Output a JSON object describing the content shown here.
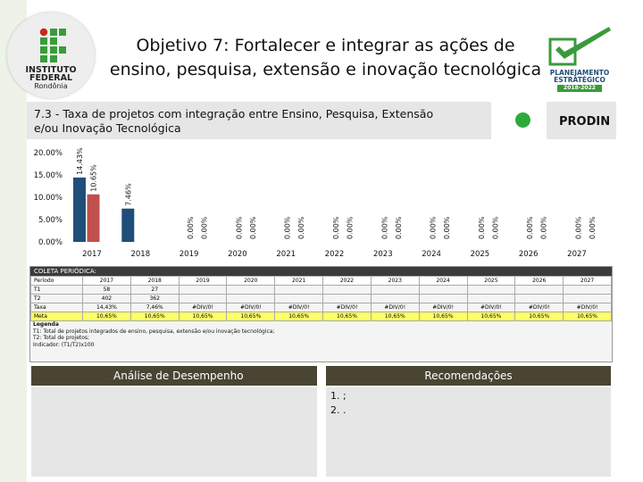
{
  "header": {
    "logo_lines": [
      "INSTITUTO",
      "FEDERAL",
      "Rondônia"
    ],
    "title_line1": "Objetivo 7: Fortalecer e integrar as ações de",
    "title_line2": "ensino, pesquisa, extensão e inovação tecnológica",
    "pe_logo_lines": [
      "PLANEJAMENTO",
      "ESTRATÉGICO",
      "2018-2022"
    ]
  },
  "indicator": {
    "title_line1": "7.3 - Taxa de projetos com integração entre Ensino, Pesquisa, Extensão",
    "title_line2": "e/ou Inovação Tecnológica",
    "owner": "PRODIN",
    "status_color": "#2eaa3b"
  },
  "chart_data": {
    "type": "bar",
    "categories": [
      "2017",
      "2018",
      "2019",
      "2020",
      "2021",
      "2022",
      "2023",
      "2024",
      "2025",
      "2026",
      "2027"
    ],
    "series": [
      {
        "values": [
          14.43,
          7.46,
          0,
          0,
          0,
          0,
          0,
          0,
          0,
          0,
          0
        ],
        "color": "#1f4e79"
      },
      {
        "values": [
          10.65,
          0,
          0,
          0,
          0,
          0,
          0,
          0,
          0,
          0,
          0
        ],
        "color": "#c0504d"
      },
      {
        "values": [
          null,
          null,
          0,
          0,
          0,
          0,
          0,
          0,
          0,
          0,
          0
        ],
        "color": "#4f81bd"
      }
    ],
    "data_labels": [
      [
        "14.43%",
        "10.65%",
        null
      ],
      [
        "7.46%",
        null,
        null
      ],
      [
        null,
        "0.00%",
        "0.00%"
      ],
      [
        null,
        "0.00%",
        "0.00%"
      ],
      [
        null,
        "0.00%",
        "0.00%"
      ],
      [
        null,
        "0.00%",
        "0.00%"
      ],
      [
        null,
        "0.00%",
        "0.00%"
      ],
      [
        null,
        "0.00%",
        "0.00%"
      ],
      [
        null,
        "0.00%",
        "0.00%"
      ],
      [
        null,
        "0.00%",
        "0.00%"
      ],
      [
        null,
        "0.00%",
        "0.00%"
      ]
    ],
    "y_ticks": [
      "0.00%",
      "5.00%",
      "10.00%",
      "15.00%",
      "20.00%"
    ],
    "ylim": [
      0,
      20
    ],
    "grid": false,
    "legend": "none"
  },
  "table": {
    "title": "COLETA PERIÓDICA:",
    "header": [
      "Período",
      "2017",
      "2018",
      "2019",
      "2020",
      "2021",
      "2022",
      "2023",
      "2024",
      "2025",
      "2026",
      "2027"
    ],
    "rows": [
      [
        "T1",
        "58",
        "27",
        "",
        "",
        "",
        "",
        "",
        "",
        "",
        "",
        ""
      ],
      [
        "T2",
        "402",
        "362",
        "",
        "",
        "",
        "",
        "",
        "",
        "",
        "",
        ""
      ],
      [
        "Taxa",
        "14,43%",
        "7,46%",
        "#DIV/0!",
        "#DIV/0!",
        "#DIV/0!",
        "#DIV/0!",
        "#DIV/0!",
        "#DIV/0!",
        "#DIV/0!",
        "#DIV/0!",
        "#DIV/0!"
      ],
      [
        "Meta",
        "10,65%",
        "10,65%",
        "10,65%",
        "10,65%",
        "10,65%",
        "10,65%",
        "10,65%",
        "10,65%",
        "10,65%",
        "10,65%",
        "10,65%"
      ]
    ],
    "legend_lines": [
      "Legenda",
      "T1: Total de projetos integrados de ensino, pesquisa, extensão e/ou inovação tecnológica;",
      "T2: Total de projetos;",
      "Indicador: (T1/T2)x100"
    ]
  },
  "analysis": {
    "title": "Análise de Desempenho"
  },
  "recommendations": {
    "title": "Recomendações",
    "items": [
      "1.  ;",
      "2.  ."
    ]
  }
}
